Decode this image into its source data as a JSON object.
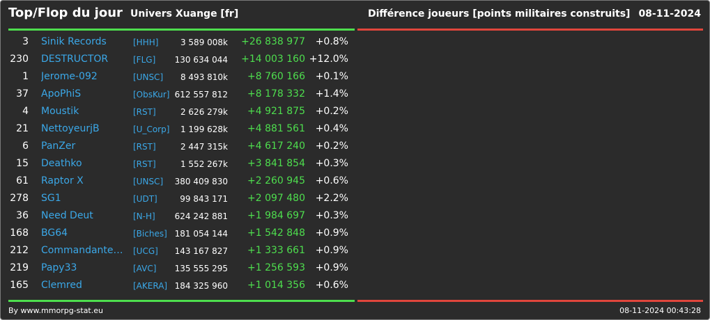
{
  "header": {
    "title": "Top/Flop du jour",
    "server": "Univers Xuange [fr]",
    "subtitle": "Différence joueurs [points militaires construits]",
    "date": "08-11-2024"
  },
  "colors": {
    "background": "#2b2b2b",
    "name": "#3ba8e8",
    "positive": "#4ede4e",
    "negative": "#e0463c"
  },
  "players": [
    {
      "rank": "3",
      "name": "Sinik Records",
      "tag": "[HHH]",
      "points": "3 589 008k",
      "diff": "+26 838 977",
      "pct": "+0.8%"
    },
    {
      "rank": "230",
      "name": "DESTRUCTOR",
      "tag": "[FLG]",
      "points": "130 634 044",
      "diff": "+14 003 160",
      "pct": "+12.0%"
    },
    {
      "rank": "1",
      "name": "Jerome-092",
      "tag": "[UNSC]",
      "points": "8 493 810k",
      "diff": "+8 760 166",
      "pct": "+0.1%"
    },
    {
      "rank": "37",
      "name": "ApoPhiS",
      "tag": "[ObsKur]",
      "points": "612 557 812",
      "diff": "+8 178 332",
      "pct": "+1.4%"
    },
    {
      "rank": "4",
      "name": "Moustik",
      "tag": "[RST]",
      "points": "2 626 279k",
      "diff": "+4 921 875",
      "pct": "+0.2%"
    },
    {
      "rank": "21",
      "name": "NettoyeurjB",
      "tag": "[U_Corp]",
      "points": "1 199 628k",
      "diff": "+4 881 561",
      "pct": "+0.4%"
    },
    {
      "rank": "6",
      "name": "PanZer",
      "tag": "[RST]",
      "points": "2 447 315k",
      "diff": "+4 617 240",
      "pct": "+0.2%"
    },
    {
      "rank": "15",
      "name": "Deathko",
      "tag": "[RST]",
      "points": "1 552 267k",
      "diff": "+3 841 854",
      "pct": "+0.3%"
    },
    {
      "rank": "61",
      "name": "Raptor X",
      "tag": "[UNSC]",
      "points": "380 409 830",
      "diff": "+2 260 945",
      "pct": "+0.6%"
    },
    {
      "rank": "278",
      "name": "SG1",
      "tag": "[UDT]",
      "points": "99 843 171",
      "diff": "+2 097 480",
      "pct": "+2.2%"
    },
    {
      "rank": "36",
      "name": "Need Deut",
      "tag": "[N-H]",
      "points": "624 242 881",
      "diff": "+1 984 697",
      "pct": "+0.3%"
    },
    {
      "rank": "168",
      "name": "BG64",
      "tag": "[Biches]",
      "points": "181 054 144",
      "diff": "+1 542 848",
      "pct": "+0.9%"
    },
    {
      "rank": "212",
      "name": "Commandante ...",
      "tag": "[UCG]",
      "points": "143 167 827",
      "diff": "+1 333 661",
      "pct": "+0.9%"
    },
    {
      "rank": "219",
      "name": "Papy33",
      "tag": "[AVC]",
      "points": "135 555 295",
      "diff": "+1 256 593",
      "pct": "+0.9%"
    },
    {
      "rank": "165",
      "name": "Clemred",
      "tag": "[AKERA]",
      "points": "184 325 960",
      "diff": "+1 014 356",
      "pct": "+0.6%"
    }
  ],
  "footer": {
    "source": "By www.mmorpg-stat.eu",
    "timestamp": "08-11-2024 00:43:28"
  }
}
